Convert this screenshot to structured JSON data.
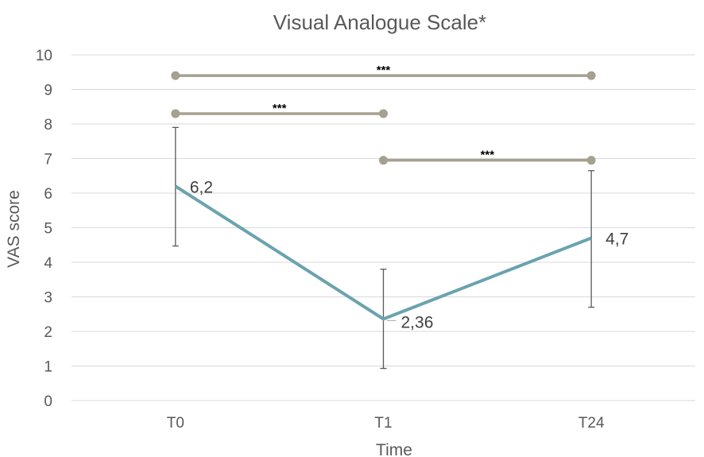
{
  "chart_data": {
    "type": "line",
    "title": "Visual Analogue Scale*",
    "xlabel": "Time",
    "ylabel": "VAS  score",
    "categories": [
      "T0",
      "T1",
      "T24"
    ],
    "series": [
      {
        "values": [
          6.2,
          2.36,
          4.7
        ],
        "labels": [
          "6,2",
          "2,36",
          "4,7"
        ],
        "error_low": [
          4.47,
          0.93,
          2.7
        ],
        "error_high": [
          7.9,
          3.8,
          6.65
        ],
        "color": "#6aa3ae"
      }
    ],
    "significance": [
      {
        "from": "T0",
        "to": "T24",
        "y": 9.4,
        "label": "***"
      },
      {
        "from": "T0",
        "to": "T1",
        "y": 8.3,
        "label": "***"
      },
      {
        "from": "T1",
        "to": "T24",
        "y": 6.95,
        "label": "***"
      }
    ],
    "significance_color": "#a5a090",
    "ylim": [
      0,
      10
    ],
    "yticks": [
      "0",
      "1",
      "2",
      "3",
      "4",
      "5",
      "6",
      "7",
      "8",
      "9",
      "10"
    ],
    "grid": true,
    "legend": "none"
  }
}
